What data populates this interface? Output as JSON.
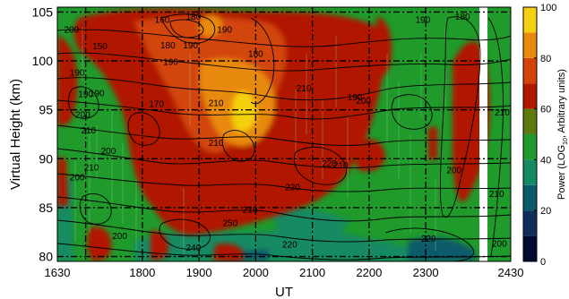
{
  "chart_data": {
    "type": "heatmap",
    "xlabel": "UT",
    "ylabel": "Virtual Height (km)",
    "colorbar_label": "Power (LOG",
    "colorbar_label_sub": "10",
    "colorbar_label_tail": ", Arbitrary units)",
    "x_ticks": [
      "1630",
      "1800",
      "1900",
      "2000",
      "2100",
      "2200",
      "2300",
      "2430"
    ],
    "x_tick_hours": [
      16.5,
      18,
      19,
      20,
      21,
      22,
      23,
      24.5
    ],
    "xlim": [
      16.5,
      24.5
    ],
    "y_ticks": [
      80,
      85,
      90,
      95,
      100,
      105
    ],
    "ylim": [
      79.5,
      105.5
    ],
    "colorbar_ticks": [
      0,
      20,
      40,
      60,
      80,
      100
    ],
    "colorbar_range": [
      0,
      100
    ],
    "colorbar_levels": [
      {
        "from": 0,
        "to": 10,
        "color": "#000a2e"
      },
      {
        "from": 10,
        "to": 20,
        "color": "#0f2f5a"
      },
      {
        "from": 20,
        "to": 30,
        "color": "#0a5a6a"
      },
      {
        "from": 30,
        "to": 40,
        "color": "#138a62"
      },
      {
        "from": 40,
        "to": 50,
        "color": "#1f9a2b"
      },
      {
        "from": 50,
        "to": 60,
        "color": "#5c7a10"
      },
      {
        "from": 60,
        "to": 70,
        "color": "#b01800"
      },
      {
        "from": 70,
        "to": 80,
        "color": "#d2440a"
      },
      {
        "from": 80,
        "to": 90,
        "color": "#e88a0c"
      },
      {
        "from": 90,
        "to": 100,
        "color": "#f5d010"
      }
    ],
    "grid": "dash-dot",
    "contour_labels": [
      {
        "text": "150",
        "x": 17.25,
        "y": 101.2
      },
      {
        "text": "160",
        "x": 18.35,
        "y": 103.9
      },
      {
        "text": "180",
        "x": 18.45,
        "y": 101.3
      },
      {
        "text": "190",
        "x": 18.5,
        "y": 99.6
      },
      {
        "text": "190",
        "x": 18.85,
        "y": 101.3
      },
      {
        "text": "180",
        "x": 18.9,
        "y": 104.2
      },
      {
        "text": "190",
        "x": 19.45,
        "y": 102.9
      },
      {
        "text": "180",
        "x": 20.0,
        "y": 100.4
      },
      {
        "text": "170",
        "x": 18.25,
        "y": 95.3
      },
      {
        "text": "210",
        "x": 19.3,
        "y": 95.4
      },
      {
        "text": "210",
        "x": 19.3,
        "y": 91.3
      },
      {
        "text": "190",
        "x": 17.0,
        "y": 96.3
      },
      {
        "text": "200",
        "x": 16.95,
        "y": 94.2
      },
      {
        "text": "210",
        "x": 17.05,
        "y": 92.6
      },
      {
        "text": "210",
        "x": 17.1,
        "y": 88.8
      },
      {
        "text": "200",
        "x": 16.85,
        "y": 87.8
      },
      {
        "text": "190",
        "x": 17.2,
        "y": 96.4
      },
      {
        "text": "200",
        "x": 17.4,
        "y": 90.5
      },
      {
        "text": "190",
        "x": 16.85,
        "y": 98.5
      },
      {
        "text": "200",
        "x": 16.75,
        "y": 102.9
      },
      {
        "text": "210",
        "x": 20.85,
        "y": 96.9
      },
      {
        "text": "220",
        "x": 20.65,
        "y": 86.8
      },
      {
        "text": "220",
        "x": 21.3,
        "y": 89.2
      },
      {
        "text": "210",
        "x": 21.5,
        "y": 89.0
      },
      {
        "text": "200",
        "x": 21.9,
        "y": 95.6
      },
      {
        "text": "190",
        "x": 21.75,
        "y": 96.0
      },
      {
        "text": "190",
        "x": 22.95,
        "y": 103.9
      },
      {
        "text": "180",
        "x": 23.65,
        "y": 104.2
      },
      {
        "text": "200",
        "x": 23.5,
        "y": 88.5
      },
      {
        "text": "210",
        "x": 24.25,
        "y": 86.1
      },
      {
        "text": "210",
        "x": 24.35,
        "y": 94.4
      },
      {
        "text": "200",
        "x": 24.3,
        "y": 81.0
      },
      {
        "text": "220",
        "x": 23.05,
        "y": 81.5
      },
      {
        "text": "200",
        "x": 17.6,
        "y": 81.8
      },
      {
        "text": "240",
        "x": 18.9,
        "y": 80.6
      },
      {
        "text": "250",
        "x": 19.55,
        "y": 83.1
      },
      {
        "text": "220",
        "x": 20.6,
        "y": 80.9
      },
      {
        "text": "210",
        "x": 19.9,
        "y": 84.5
      }
    ]
  }
}
